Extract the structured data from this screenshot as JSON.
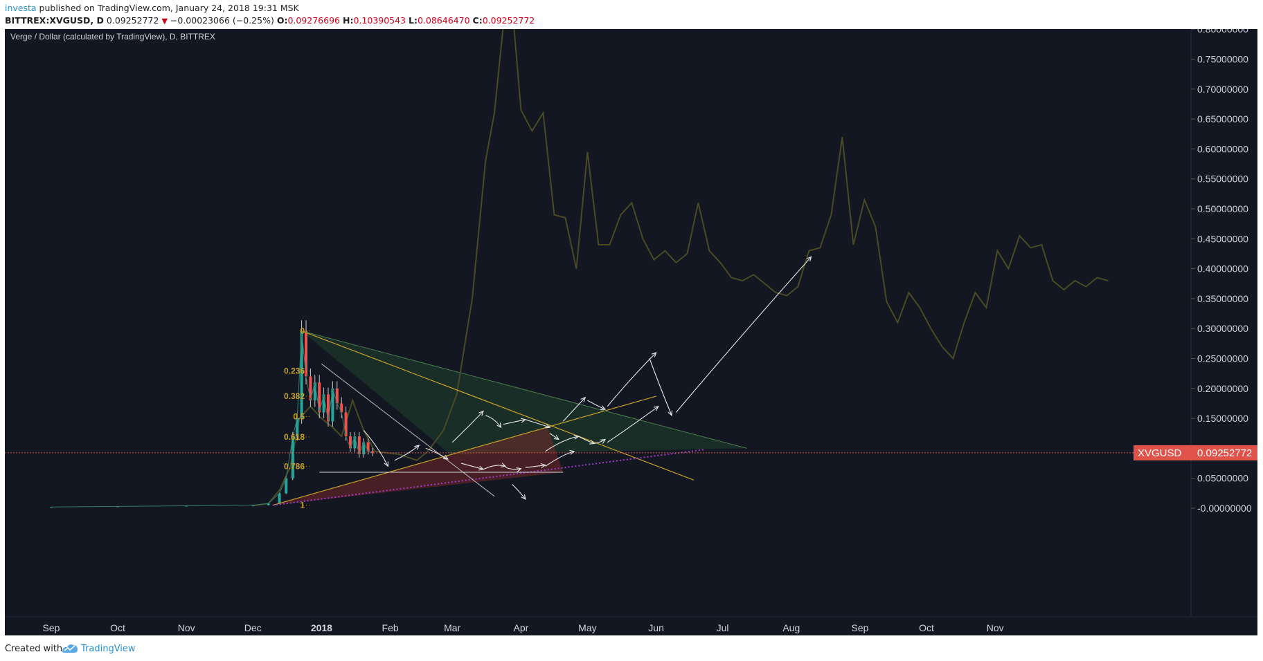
{
  "header": {
    "author": "investa",
    "published": " published on TradingView.com, January 24, 2018 19:31 MSK",
    "symbol": "BITTREX:XVGUSD, D",
    "price": "0.09252772",
    "arrow": "▼",
    "change": "−0.00023066 (−0.25%)",
    "o_label": "O:",
    "o_value": "0.09276696",
    "h_label": "H:",
    "h_value": "0.10390543",
    "l_label": "L:",
    "l_value": "0.08646470",
    "c_label": "C:",
    "c_value": "0.09252772"
  },
  "chart_title": "Verge / Dollar (calculated by TradingView), D, BITTREX",
  "price_tag": {
    "symbol": "XVGUSD",
    "value": "0.09252772"
  },
  "footer": {
    "created": "Created with",
    "brand": "TradingView"
  },
  "colors": {
    "background": "#131722",
    "overlay_line": "#4a4a23",
    "fib_label": "#c9a227",
    "trend_line": "#c9a227",
    "support_line": "#a23cc9",
    "price_line": "#e0534a",
    "drawing": "#e8e8e8",
    "axis_text": "#d1d4dc"
  },
  "chart_data": {
    "type": "line",
    "title": "Verge / Dollar (calculated by TradingView), D, BITTREX",
    "y_axis": {
      "min": -0.05,
      "max": 0.8,
      "ticks": [
        "-0.00000000",
        "0.05000000",
        "0.10000000",
        "0.15000000",
        "0.20000000",
        "0.25000000",
        "0.30000000",
        "0.35000000",
        "0.40000000",
        "0.45000000",
        "0.50000000",
        "0.55000000",
        "0.60000000",
        "0.65000000",
        "0.70000000",
        "0.75000000",
        "0.80000000"
      ],
      "tick_values": [
        0,
        0.05,
        0.1,
        0.15,
        0.2,
        0.25,
        0.3,
        0.35,
        0.4,
        0.45,
        0.5,
        0.55,
        0.6,
        0.65,
        0.7,
        0.75,
        0.8
      ]
    },
    "x_axis": {
      "labels": [
        "Sep",
        "Oct",
        "Nov",
        "Dec",
        "2018",
        "Feb",
        "Mar",
        "Apr",
        "May",
        "Jun",
        "Jul",
        "Aug",
        "Sep",
        "Oct",
        "Nov"
      ],
      "label_dates": [
        "2017-09-01",
        "2017-10-01",
        "2017-11-01",
        "2017-12-01",
        "2018-01-01",
        "2018-02-01",
        "2018-03-01",
        "2018-04-01",
        "2018-05-01",
        "2018-06-01",
        "2018-07-01",
        "2018-08-01",
        "2018-09-01",
        "2018-10-01",
        "2018-11-01"
      ]
    },
    "fibonacci": {
      "levels": [
        "0",
        "0.236",
        "0.382",
        "0.5",
        "0.618",
        "0.786",
        "1"
      ],
      "prices": [
        0.296,
        0.229,
        0.187,
        0.153,
        0.119,
        0.07,
        0.005
      ]
    },
    "last_price": 0.09252772,
    "series": [
      {
        "name": "",
        "description": "overlay projection line",
        "points": [
          [
            "2017-12-01",
            0.004
          ],
          [
            "2017-12-08",
            0.008
          ],
          [
            "2017-12-13",
            0.03
          ],
          [
            "2017-12-18",
            0.07
          ],
          [
            "2017-12-22",
            0.15
          ],
          [
            "2017-12-27",
            0.17
          ],
          [
            "2018-01-01",
            0.15
          ],
          [
            "2018-01-06",
            0.135
          ],
          [
            "2018-01-10",
            0.12
          ],
          [
            "2018-01-15",
            0.18
          ],
          [
            "2018-01-20",
            0.13
          ],
          [
            "2018-01-25",
            0.095
          ],
          [
            "2018-02-05",
            0.09
          ],
          [
            "2018-02-13",
            0.08
          ],
          [
            "2018-02-18",
            0.095
          ],
          [
            "2018-02-25",
            0.13
          ],
          [
            "2018-03-03",
            0.19
          ],
          [
            "2018-03-10",
            0.35
          ],
          [
            "2018-03-16",
            0.58
          ],
          [
            "2018-03-20",
            0.66
          ],
          [
            "2018-03-24",
            0.805
          ],
          [
            "2018-03-28",
            0.84
          ],
          [
            "2018-04-01",
            0.665
          ],
          [
            "2018-04-06",
            0.63
          ],
          [
            "2018-04-11",
            0.66
          ],
          [
            "2018-04-16",
            0.49
          ],
          [
            "2018-04-21",
            0.485
          ],
          [
            "2018-04-26",
            0.4
          ],
          [
            "2018-05-01",
            0.595
          ],
          [
            "2018-05-06",
            0.44
          ],
          [
            "2018-05-11",
            0.44
          ],
          [
            "2018-05-16",
            0.49
          ],
          [
            "2018-05-21",
            0.51
          ],
          [
            "2018-05-26",
            0.45
          ],
          [
            "2018-05-31",
            0.415
          ],
          [
            "2018-06-05",
            0.43
          ],
          [
            "2018-06-10",
            0.41
          ],
          [
            "2018-06-15",
            0.425
          ],
          [
            "2018-06-20",
            0.51
          ],
          [
            "2018-06-25",
            0.43
          ],
          [
            "2018-06-30",
            0.41
          ],
          [
            "2018-07-05",
            0.385
          ],
          [
            "2018-07-10",
            0.38
          ],
          [
            "2018-07-15",
            0.39
          ],
          [
            "2018-07-20",
            0.375
          ],
          [
            "2018-07-25",
            0.36
          ],
          [
            "2018-07-30",
            0.355
          ],
          [
            "2018-08-04",
            0.37
          ],
          [
            "2018-08-09",
            0.43
          ],
          [
            "2018-08-14",
            0.435
          ],
          [
            "2018-08-19",
            0.49
          ],
          [
            "2018-08-24",
            0.62
          ],
          [
            "2018-08-29",
            0.44
          ],
          [
            "2018-09-03",
            0.515
          ],
          [
            "2018-09-08",
            0.47
          ],
          [
            "2018-09-13",
            0.345
          ],
          [
            "2018-09-18",
            0.31
          ],
          [
            "2018-09-23",
            0.36
          ],
          [
            "2018-09-28",
            0.335
          ],
          [
            "2018-10-03",
            0.3
          ],
          [
            "2018-10-08",
            0.27
          ],
          [
            "2018-10-13",
            0.25
          ],
          [
            "2018-10-18",
            0.31
          ],
          [
            "2018-10-23",
            0.36
          ],
          [
            "2018-10-28",
            0.335
          ],
          [
            "2018-11-02",
            0.43
          ],
          [
            "2018-11-07",
            0.4
          ],
          [
            "2018-11-12",
            0.455
          ],
          [
            "2018-11-17",
            0.435
          ],
          [
            "2018-11-22",
            0.44
          ],
          [
            "2018-11-27",
            0.38
          ],
          [
            "2018-12-02",
            0.365
          ],
          [
            "2018-12-07",
            0.38
          ],
          [
            "2018-12-12",
            0.37
          ],
          [
            "2018-12-17",
            0.385
          ],
          [
            "2018-12-22",
            0.38
          ]
        ]
      },
      {
        "name": "",
        "description": "XVGUSD daily closes",
        "points": [
          [
            "2017-09-01",
            0.002
          ],
          [
            "2017-10-01",
            0.003
          ],
          [
            "2017-11-01",
            0.004
          ],
          [
            "2017-12-01",
            0.005
          ],
          [
            "2017-12-08",
            0.008
          ],
          [
            "2017-12-13",
            0.025
          ],
          [
            "2017-12-16",
            0.05
          ],
          [
            "2017-12-19",
            0.12
          ],
          [
            "2017-12-21",
            0.15
          ],
          [
            "2017-12-23",
            0.296
          ],
          [
            "2017-12-25",
            0.22
          ],
          [
            "2017-12-27",
            0.18
          ],
          [
            "2017-12-29",
            0.21
          ],
          [
            "2017-12-31",
            0.16
          ],
          [
            "2018-01-02",
            0.19
          ],
          [
            "2018-01-04",
            0.145
          ],
          [
            "2018-01-06",
            0.2
          ],
          [
            "2018-01-08",
            0.175
          ],
          [
            "2018-01-10",
            0.16
          ],
          [
            "2018-01-12",
            0.12
          ],
          [
            "2018-01-14",
            0.1
          ],
          [
            "2018-01-16",
            0.12
          ],
          [
            "2018-01-18",
            0.09
          ],
          [
            "2018-01-20",
            0.11
          ],
          [
            "2018-01-22",
            0.095
          ],
          [
            "2018-01-24",
            0.0925
          ]
        ]
      }
    ]
  }
}
